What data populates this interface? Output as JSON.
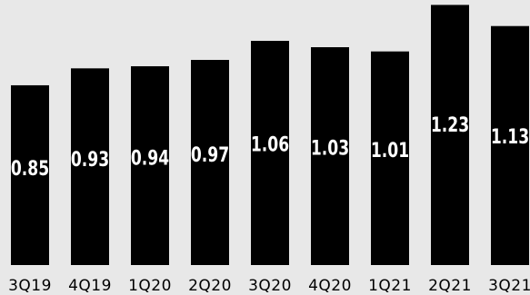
{
  "chart_data": {
    "type": "bar",
    "title": "",
    "xlabel": "",
    "ylabel": "",
    "categories": [
      "3Q19",
      "4Q19",
      "1Q20",
      "2Q20",
      "3Q20",
      "4Q20",
      "1Q21",
      "2Q21",
      "3Q21"
    ],
    "values": [
      0.85,
      0.93,
      0.94,
      0.97,
      1.06,
      1.03,
      1.01,
      1.23,
      1.13
    ],
    "value_labels": [
      "0.85",
      "0.93",
      "0.94",
      "0.97",
      "1.06",
      "1.03",
      "1.01",
      "1.23",
      "1.13"
    ],
    "ylim": [
      0,
      1.3
    ],
    "grid": false,
    "legend": "none",
    "colors": {
      "bar": "#000000",
      "bar_label": "#ffffff",
      "background": "#e8e8e8",
      "category_label": "#000000"
    }
  }
}
